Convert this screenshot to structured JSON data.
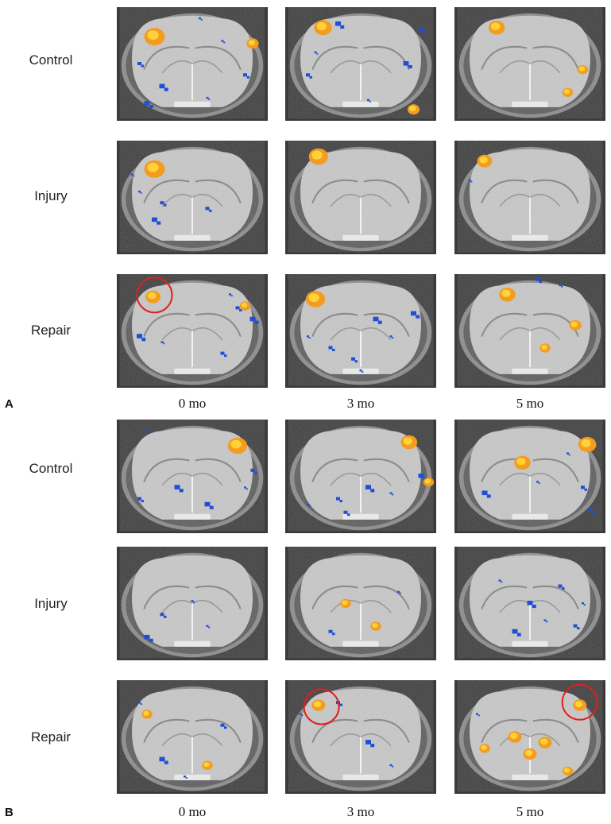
{
  "panels": [
    {
      "letter": "A",
      "rows": [
        "Control",
        "Injury",
        "Repair"
      ],
      "columns": [
        "0 mo",
        "3 mo",
        "5 mo"
      ]
    },
    {
      "letter": "B",
      "rows": [
        "Control",
        "Injury",
        "Repair"
      ],
      "columns": [
        "0 mo",
        "3 mo",
        "5 mo"
      ]
    }
  ],
  "colors": {
    "activation_positive": "#f39c1f",
    "activation_negative": "#1f4fd6",
    "highlight_circle": "#e02020"
  },
  "scans": {
    "A": [
      [
        {
          "hot": [
            [
              0.25,
              0.26,
              1.0
            ],
            [
              0.9,
              0.32,
              0.4
            ]
          ],
          "cold": [
            [
              0.55,
              0.1
            ],
            [
              0.15,
              0.5
            ],
            [
              0.3,
              0.7
            ],
            [
              0.6,
              0.8
            ],
            [
              0.85,
              0.6
            ],
            [
              0.2,
              0.85
            ],
            [
              0.7,
              0.3
            ]
          ],
          "circle": null
        },
        {
          "hot": [
            [
              0.25,
              0.18,
              0.8
            ],
            [
              0.85,
              0.9,
              0.4
            ]
          ],
          "cold": [
            [
              0.2,
              0.4
            ],
            [
              0.15,
              0.6
            ],
            [
              0.8,
              0.5
            ],
            [
              0.55,
              0.82
            ],
            [
              0.9,
              0.2
            ],
            [
              0.35,
              0.15
            ]
          ],
          "circle": null
        },
        {
          "hot": [
            [
              0.28,
              0.18,
              0.7
            ],
            [
              0.85,
              0.55,
              0.3
            ],
            [
              0.75,
              0.75,
              0.3
            ]
          ],
          "cold": [],
          "circle": null
        }
      ],
      [
        {
          "hot": [
            [
              0.25,
              0.25,
              1.0
            ]
          ],
          "cold": [
            [
              0.15,
              0.45
            ],
            [
              0.3,
              0.55
            ],
            [
              0.25,
              0.7
            ],
            [
              0.1,
              0.3
            ],
            [
              0.6,
              0.6
            ]
          ],
          "circle": null
        },
        {
          "hot": [
            [
              0.22,
              0.14,
              0.9
            ]
          ],
          "cold": [],
          "circle": null
        },
        {
          "hot": [
            [
              0.2,
              0.18,
              0.6
            ]
          ],
          "cold": [
            [
              0.1,
              0.35
            ]
          ],
          "circle": null
        }
      ],
      [
        {
          "hot": [
            [
              0.24,
              0.2,
              0.6
            ],
            [
              0.85,
              0.28,
              0.3
            ]
          ],
          "cold": [
            [
              0.75,
              0.18
            ],
            [
              0.8,
              0.3
            ],
            [
              0.9,
              0.4
            ],
            [
              0.3,
              0.6
            ],
            [
              0.7,
              0.7
            ],
            [
              0.15,
              0.55
            ]
          ],
          "circle": [
            0.25,
            0.17
          ]
        },
        {
          "hot": [
            [
              0.2,
              0.22,
              0.9
            ]
          ],
          "cold": [
            [
              0.15,
              0.55
            ],
            [
              0.3,
              0.65
            ],
            [
              0.6,
              0.4
            ],
            [
              0.7,
              0.55
            ],
            [
              0.45,
              0.75
            ],
            [
              0.85,
              0.35
            ],
            [
              0.5,
              0.85
            ]
          ],
          "circle": null
        },
        {
          "hot": [
            [
              0.35,
              0.18,
              0.7
            ],
            [
              0.8,
              0.45,
              0.4
            ],
            [
              0.6,
              0.65,
              0.3
            ]
          ],
          "cold": [
            [
              0.7,
              0.1
            ],
            [
              0.55,
              0.05
            ]
          ],
          "circle": null
        }
      ]
    ],
    "B": [
      [
        {
          "hot": [
            [
              0.8,
              0.23,
              0.9
            ]
          ],
          "cold": [
            [
              0.2,
              0.1
            ],
            [
              0.15,
              0.7
            ],
            [
              0.4,
              0.6
            ],
            [
              0.85,
              0.6
            ],
            [
              0.9,
              0.45
            ],
            [
              0.6,
              0.75
            ]
          ],
          "circle": null
        },
        {
          "hot": [
            [
              0.82,
              0.2,
              0.7
            ],
            [
              0.95,
              0.55,
              0.3
            ]
          ],
          "cold": [
            [
              0.15,
              0.75
            ],
            [
              0.35,
              0.7
            ],
            [
              0.55,
              0.6
            ],
            [
              0.7,
              0.65
            ],
            [
              0.4,
              0.82
            ],
            [
              0.9,
              0.5
            ]
          ],
          "circle": null
        },
        {
          "hot": [
            [
              0.88,
              0.22,
              0.8
            ],
            [
              0.45,
              0.38,
              0.7
            ]
          ],
          "cold": [
            [
              0.75,
              0.3
            ],
            [
              0.85,
              0.6
            ],
            [
              0.2,
              0.65
            ],
            [
              0.55,
              0.55
            ],
            [
              0.9,
              0.8
            ]
          ],
          "circle": null
        }
      ],
      [
        {
          "hot": [],
          "cold": [
            [
              0.5,
              0.48
            ],
            [
              0.3,
              0.6
            ],
            [
              0.2,
              0.8
            ],
            [
              0.6,
              0.7
            ]
          ],
          "circle": null
        },
        {
          "hot": [
            [
              0.4,
              0.5,
              0.3
            ],
            [
              0.6,
              0.7,
              0.3
            ]
          ],
          "cold": [
            [
              0.75,
              0.4
            ],
            [
              0.3,
              0.75
            ]
          ],
          "circle": null
        },
        {
          "hot": [],
          "cold": [
            [
              0.3,
              0.3
            ],
            [
              0.7,
              0.35
            ],
            [
              0.5,
              0.5
            ],
            [
              0.6,
              0.65
            ],
            [
              0.8,
              0.7
            ],
            [
              0.4,
              0.75
            ],
            [
              0.85,
              0.5
            ]
          ],
          "circle": null
        }
      ],
      [
        {
          "hot": [
            [
              0.2,
              0.3,
              0.3
            ],
            [
              0.6,
              0.75,
              0.3
            ]
          ],
          "cold": [
            [
              0.15,
              0.2
            ],
            [
              0.7,
              0.4
            ],
            [
              0.3,
              0.7
            ],
            [
              0.45,
              0.85
            ]
          ],
          "circle": null
        },
        {
          "hot": [
            [
              0.22,
              0.22,
              0.5
            ]
          ],
          "cold": [
            [
              0.1,
              0.3
            ],
            [
              0.35,
              0.2
            ],
            [
              0.55,
              0.55
            ],
            [
              0.7,
              0.75
            ]
          ],
          "circle": [
            0.24,
            0.22
          ]
        },
        {
          "hot": [
            [
              0.83,
              0.22,
              0.5
            ],
            [
              0.4,
              0.5,
              0.5
            ],
            [
              0.6,
              0.55,
              0.5
            ],
            [
              0.5,
              0.65,
              0.5
            ],
            [
              0.2,
              0.6,
              0.3
            ],
            [
              0.75,
              0.8,
              0.3
            ]
          ],
          "cold": [
            [
              0.15,
              0.3
            ]
          ],
          "circle": [
            0.83,
            0.18
          ]
        }
      ]
    ]
  }
}
